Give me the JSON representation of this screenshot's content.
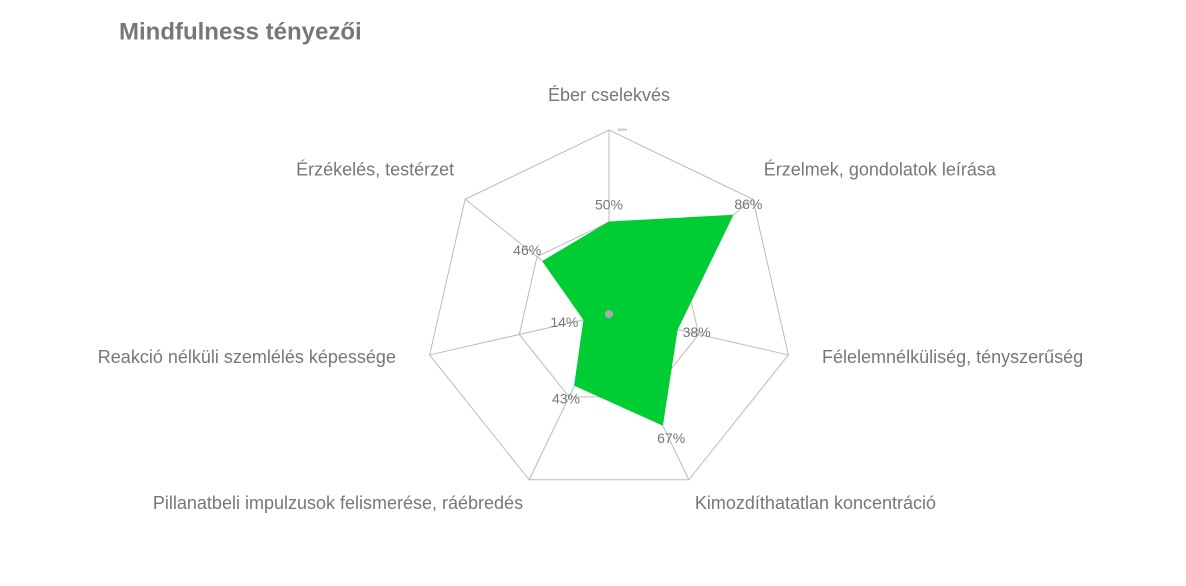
{
  "chart_data": {
    "type": "radar",
    "title": "Mindfulness tényezői",
    "categories": [
      "Éber cselekvés",
      "Érzelmek, gondolatok leírása",
      "Félelemnélküliség, tényszerűség",
      "Kimozdíthatatlan koncentráció",
      "Pillanatbeli impulzusok felismerése, ráébredés",
      "Reakció nélküli szemlélés képessége",
      "Érzékelés, testérzet"
    ],
    "values": [
      50,
      86,
      38,
      67,
      43,
      14,
      46
    ],
    "value_labels": [
      "50%",
      "86%",
      "38%",
      "67%",
      "43%",
      "14%",
      "46%"
    ],
    "color": "#00cc33",
    "rlim": [
      0,
      100
    ],
    "rticks": [
      {
        "value": 50,
        "label": "50%"
      },
      {
        "value": 100,
        "label": "100%"
      }
    ],
    "grid": true
  }
}
